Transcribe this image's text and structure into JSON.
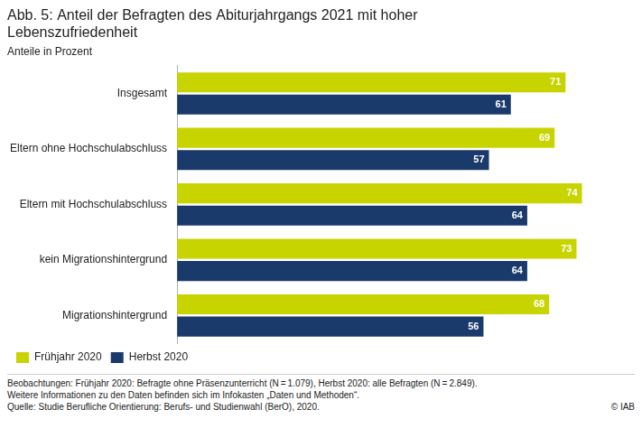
{
  "chart_data": {
    "type": "bar",
    "orientation": "horizontal",
    "title": "Abb. 5: Anteil der Befragten des Abiturjahrgangs 2021 mit hoher\nLebenszufriedenheit",
    "subtitle": "Anteile in Prozent",
    "categories": [
      "Insgesamt",
      "Eltern ohne Hochschulabschluss",
      "Eltern mit Hochschulabschluss",
      "kein Migrationshintergrund",
      "Migrationshintergrund"
    ],
    "series": [
      {
        "name": "Frühjahr 2020",
        "color": "#c8d400",
        "values": [
          71,
          69,
          74,
          73,
          68
        ]
      },
      {
        "name": "Herbst 2020",
        "color": "#1a3a6b",
        "values": [
          61,
          57,
          64,
          64,
          56
        ]
      }
    ],
    "xlim": [
      0,
      82
    ],
    "tick_labels": "y",
    "grid": false,
    "data_labels": true,
    "legend": "bottom",
    "annotations": [
      "Beobachtungen: Frühjahr 2020: Befragte ohne Präsenzunterricht (N = 1.079), Herbst 2020: alle Befragten (N = 2.849).",
      "Weitere Informationen zu den Daten befinden sich im Infokasten „Daten und Methoden“.",
      "Quelle: Studie Berufliche Orientierung: Berufs- und Studienwahl (BerO), 2020.",
      "© IAB"
    ]
  }
}
